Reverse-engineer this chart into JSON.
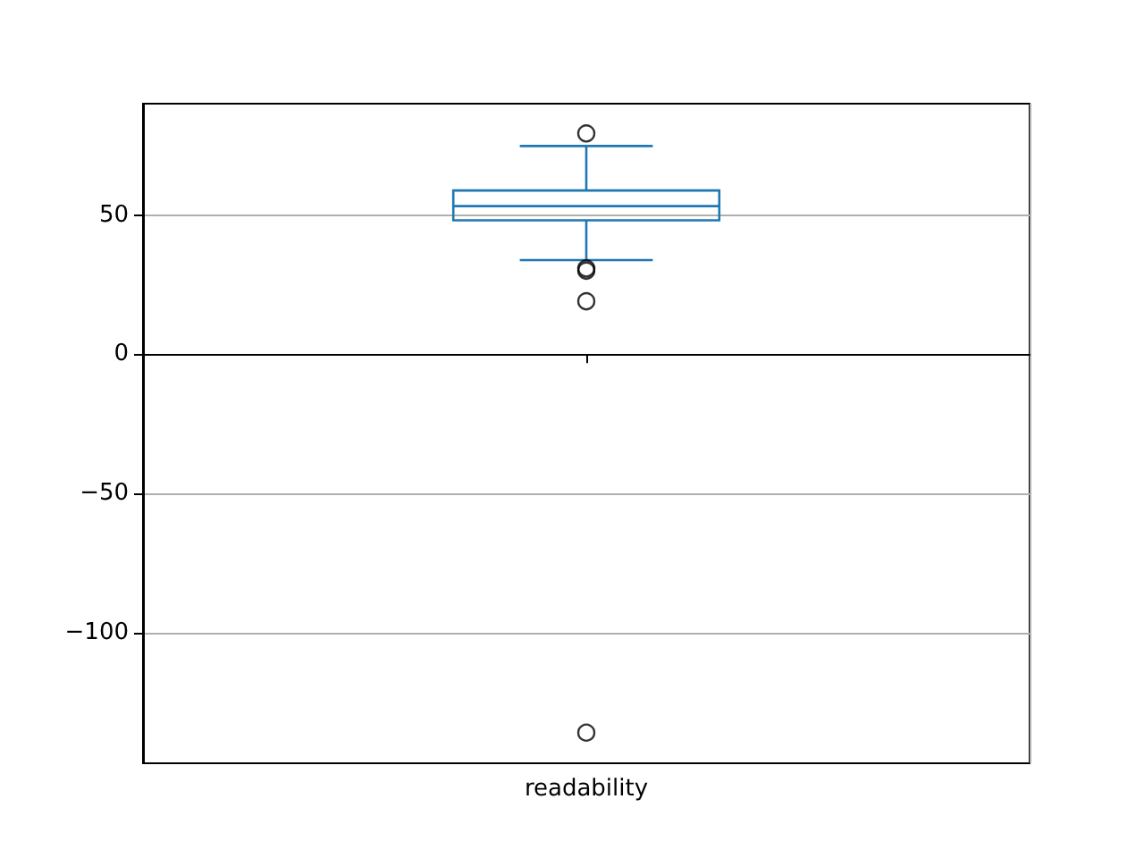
{
  "chart_data": {
    "type": "box",
    "categories": [
      "readability"
    ],
    "series": [
      {
        "color": "#1f77b4",
        "boxes": [
          {
            "low": 33.8,
            "q1": 48.1,
            "median": 53.2,
            "q3": 58.8,
            "high": 74.8,
            "outliers": [
              79.3,
              30.8,
              30,
              19,
              -136
            ]
          }
        ]
      }
    ],
    "ylim": [
      -147,
      90
    ],
    "yticks": [
      -100,
      -50,
      0,
      50
    ],
    "grid": true,
    "marker": "circle"
  }
}
